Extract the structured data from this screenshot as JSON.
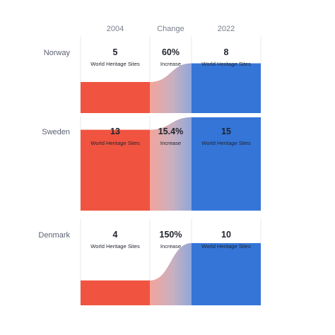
{
  "chart_data": {
    "type": "bar",
    "columns": [
      "2004",
      "Change",
      "2022"
    ],
    "sub_label_sites": "World Heritage Sites",
    "sub_label_change": "Increase",
    "ymax": 15,
    "colors": {
      "start": "#f05440",
      "end": "#3575d8",
      "grid": "#e6e8ec"
    },
    "series": [
      {
        "name": "2004",
        "values": [
          5,
          13,
          4
        ]
      },
      {
        "name": "2022",
        "values": [
          8,
          15,
          10
        ]
      }
    ],
    "rows": [
      {
        "country": "Norway",
        "v2004": 5,
        "v2022": 8,
        "change": "60%",
        "label2004": "5",
        "label2022": "8"
      },
      {
        "country": "Sweden",
        "v2004": 13,
        "v2022": 15,
        "change": "15.4%",
        "label2004": "13",
        "label2022": "15"
      },
      {
        "country": "Denmark",
        "v2004": 4,
        "v2022": 10,
        "change": "150%",
        "label2004": "4",
        "label2022": "10"
      }
    ]
  }
}
